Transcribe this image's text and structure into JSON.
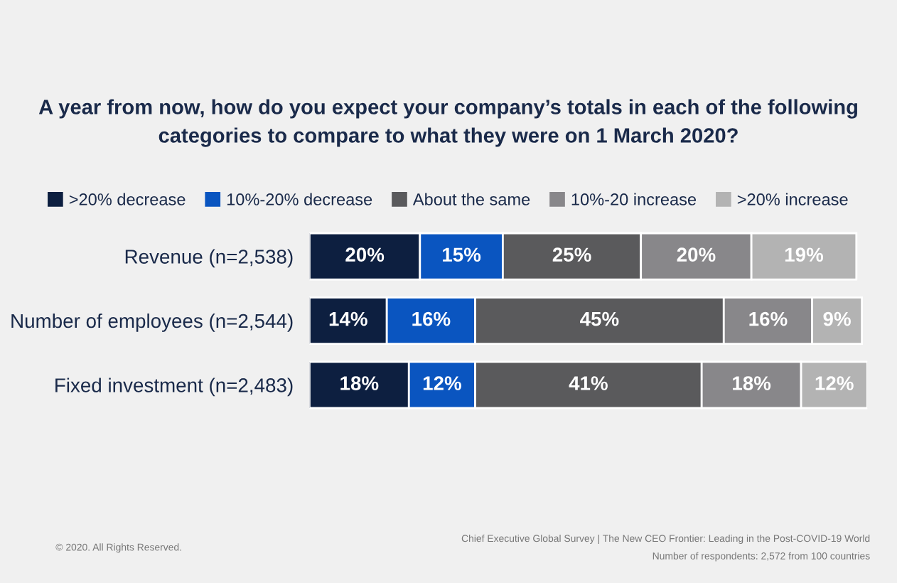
{
  "chart_data": {
    "type": "bar",
    "orientation": "horizontal",
    "stacked": true,
    "legend": "top",
    "grid": false,
    "title": "A year from now, how do you expect your company’s totals in each of the following\ncategories to compare to what they were on 1 March 2020?",
    "categories": [
      "Revenue (n=2,538)",
      "Number of employees (n=2,544)",
      "Fixed investment (n=2,483)"
    ],
    "series": [
      {
        "name": ">20% decrease",
        "color": "#0d1f40",
        "values": [
          20,
          14,
          18
        ],
        "value_labels": [
          "20%",
          "14%",
          "18%"
        ]
      },
      {
        "name": "10%-20% decrease",
        "color": "#0a55c0",
        "values": [
          15,
          16,
          12
        ],
        "value_labels": [
          "15%",
          "16%",
          "12%"
        ]
      },
      {
        "name": "About the same",
        "color": "#5a5a5c",
        "values": [
          25,
          45,
          41
        ],
        "value_labels": [
          "25%",
          "45%",
          "41%"
        ]
      },
      {
        "name": "10%-20 increase",
        "color": "#88878a",
        "values": [
          20,
          16,
          18
        ],
        "value_labels": [
          "20%",
          "16%",
          "18%"
        ]
      },
      {
        "name": ">20% increase",
        "color": "#b3b3b3",
        "values": [
          19,
          9,
          12
        ],
        "value_labels": [
          "19%",
          "9%",
          "12%"
        ]
      }
    ],
    "annotations": [
      "© 2020. All Rights Reserved.",
      "Chief Executive Global Survey | The New CEO Frontier: Leading in the Post-COVID-19 World",
      "Number of respondents: 2,572 from 100 countries"
    ]
  }
}
